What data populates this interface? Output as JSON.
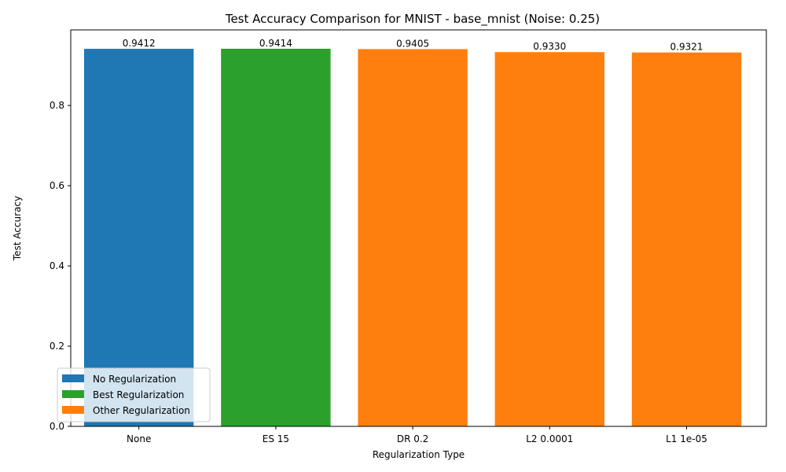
{
  "chart_data": {
    "type": "bar",
    "title": "Test Accuracy Comparison for MNIST - base_mnist (Noise: 0.25)",
    "xlabel": "Regularization Type",
    "ylabel": "Test Accuracy",
    "categories": [
      "None",
      "ES 15",
      "DR 0.2",
      "L2 0.0001",
      "L1 1e-05"
    ],
    "values": [
      0.9412,
      0.9414,
      0.9405,
      0.933,
      0.9321
    ],
    "data_labels": [
      "0.9412",
      "0.9414",
      "0.9405",
      "0.9330",
      "0.9321"
    ],
    "bar_groups": [
      "No Regularization",
      "Best Regularization",
      "Other Regularization",
      "Other Regularization",
      "Other Regularization"
    ],
    "ylim": [
      0,
      0.9884
    ],
    "yticks": [
      0.0,
      0.2,
      0.4,
      0.6,
      0.8
    ],
    "ytick_labels": [
      "0.0",
      "0.2",
      "0.4",
      "0.6",
      "0.8"
    ],
    "grid": false,
    "legend_position": "lower-left",
    "legend": [
      {
        "label": "No Regularization",
        "color": "#1f77b4"
      },
      {
        "label": "Best Regularization",
        "color": "#2ca02c"
      },
      {
        "label": "Other Regularization",
        "color": "#ff7f0e"
      }
    ]
  }
}
